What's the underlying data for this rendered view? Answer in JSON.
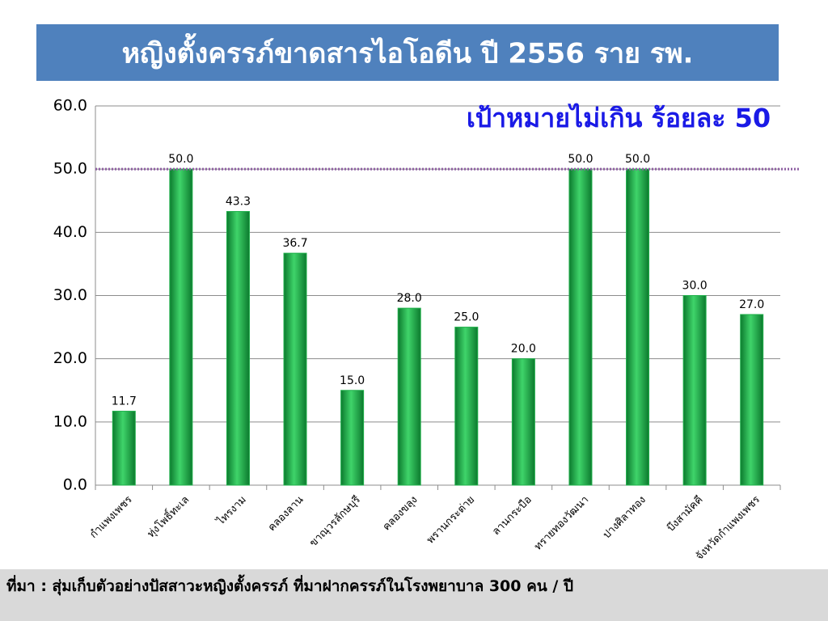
{
  "chart_data": {
    "type": "bar",
    "title": "หญิงตั้งครรภ์ขาดสารไอโอดีน ปี 2556 ราย รพ.",
    "categories": [
      "กำแพงเพชร",
      "ทุ่งโพธิ์ทะเล",
      "ไทรงาม",
      "คลองลาน",
      "ขาณุวรลักษบุรี",
      "คลองขลุง",
      "พรานกระต่าย",
      "ลานกระบือ",
      "ทรายทองวัฒนา",
      "ปางศิลาทอง",
      "บึงสามัคคี",
      "จังหวัดกำแพงเพชร"
    ],
    "values": [
      11.7,
      50.0,
      43.3,
      36.7,
      15.0,
      28.0,
      25.0,
      20.0,
      50.0,
      50.0,
      30.0,
      27.0
    ],
    "value_labels": [
      "11.7",
      "50.0",
      "43.3",
      "36.7",
      "15.0",
      "28.0",
      "25.0",
      "20.0",
      "50.0",
      "50.0",
      "30.0",
      "27.0"
    ],
    "color": "#1fb04a",
    "ylim": [
      0,
      60
    ],
    "yticks": [
      {
        "value": 0,
        "label": "0.0"
      },
      {
        "value": 10,
        "label": "10.0"
      },
      {
        "value": 20,
        "label": "20.0"
      },
      {
        "value": 30,
        "label": "30.0"
      },
      {
        "value": 40,
        "label": "40.0"
      },
      {
        "value": 50,
        "label": "50.0"
      },
      {
        "value": 60,
        "label": "60.0"
      }
    ],
    "grid": true,
    "reference_line": {
      "value": 50,
      "label": "เป้าหมายไม่เกิน ร้อยละ 50",
      "color": "#8e5ea2"
    },
    "source": "ที่มา :  สุ่มเก็บตัวอย่างปัสสาวะหญิงตั้งครรภ์ ที่มาฝากครรภ์ในโรงพยาบาล  300 คน / ปี"
  }
}
